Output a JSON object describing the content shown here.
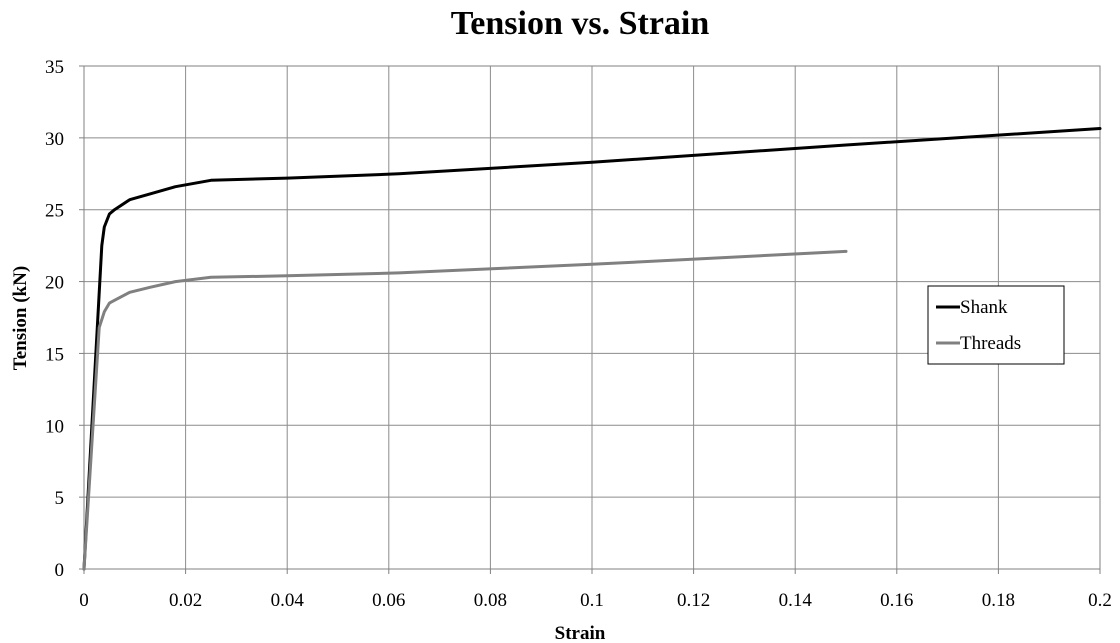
{
  "chart_data": {
    "type": "line",
    "title": "Tension vs. Strain",
    "xlabel": "Strain",
    "ylabel": "Tension (kN)",
    "xlim": [
      0,
      0.2
    ],
    "ylim": [
      0,
      35
    ],
    "xticks": [
      0,
      0.02,
      0.04,
      0.06,
      0.08,
      0.1,
      0.12,
      0.14,
      0.16,
      0.18,
      0.2
    ],
    "xtick_labels": [
      "0",
      "0.02",
      "0.04",
      "0.06",
      "0.08",
      "0.1",
      "0.12",
      "0.14",
      "0.16",
      "0.18",
      "0.2"
    ],
    "yticks": [
      0,
      5,
      10,
      15,
      20,
      25,
      30,
      35
    ],
    "ytick_labels": [
      "0",
      "5",
      "10",
      "15",
      "20",
      "25",
      "30",
      "35"
    ],
    "grid": true,
    "legend_position": "right",
    "series": [
      {
        "name": "Shank",
        "color": "#000000",
        "points": [
          [
            0,
            0
          ],
          [
            0.0035,
            22.5
          ],
          [
            0.004,
            23.8
          ],
          [
            0.005,
            24.7
          ],
          [
            0.006,
            25.0
          ],
          [
            0.009,
            25.7
          ],
          [
            0.013,
            26.1
          ],
          [
            0.018,
            26.6
          ],
          [
            0.025,
            27.05
          ],
          [
            0.04,
            27.2
          ],
          [
            0.062,
            27.5
          ],
          [
            0.1,
            28.3
          ],
          [
            0.15,
            29.5
          ],
          [
            0.2,
            30.65
          ]
        ]
      },
      {
        "name": "Threads",
        "color": "#808080",
        "points": [
          [
            0,
            0
          ],
          [
            0.003,
            16.8
          ],
          [
            0.004,
            17.9
          ],
          [
            0.005,
            18.5
          ],
          [
            0.006,
            18.7
          ],
          [
            0.009,
            19.25
          ],
          [
            0.013,
            19.6
          ],
          [
            0.018,
            20.0
          ],
          [
            0.025,
            20.3
          ],
          [
            0.04,
            20.4
          ],
          [
            0.062,
            20.6
          ],
          [
            0.1,
            21.2
          ],
          [
            0.15,
            22.1
          ]
        ]
      }
    ]
  }
}
